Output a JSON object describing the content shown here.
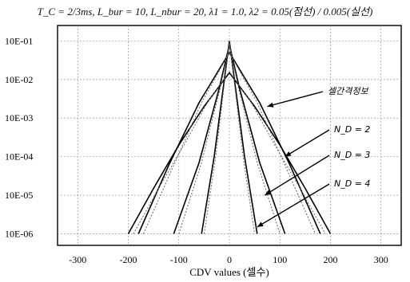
{
  "chart_data": {
    "type": "line",
    "title": "T_C = 2/3ms, L_bur = 10, L_nbur = 20, λ1 = 1.0, λ2 = 0.05(점선) / 0.005(실선)",
    "xlabel": "CDV values (셀수)",
    "ylabel": "",
    "x_ticks": [
      -300,
      -200,
      -100,
      0,
      100,
      200,
      300
    ],
    "y_ticks": [
      "10E-01",
      "10E-02",
      "10E-03",
      "10E-04",
      "10E-05",
      "10E-06"
    ],
    "xlim": [
      -340,
      340
    ],
    "ylim_log10": [
      -6.3,
      -0.6
    ],
    "grid": true,
    "series": [
      {
        "style": "solid",
        "color": "#000000",
        "x": [
          -200,
          -150,
          -100,
          -50,
          0,
          50,
          100,
          150,
          200
        ],
        "y": [
          1e-06,
          1.5e-05,
          0.0002,
          0.002,
          0.015,
          0.002,
          0.0002,
          1.5e-05,
          1e-06
        ]
      },
      {
        "style": "solid",
        "color": "#000000",
        "x": [
          -180,
          -120,
          -60,
          0,
          60,
          120,
          180
        ],
        "y": [
          1e-06,
          6e-05,
          0.0025,
          0.05,
          0.0025,
          6e-05,
          1e-06
        ]
      },
      {
        "style": "solid",
        "color": "#000000",
        "x": [
          -110,
          -60,
          -20,
          0,
          20,
          60,
          110
        ],
        "y": [
          1e-06,
          7e-05,
          0.006,
          0.08,
          0.006,
          7e-05,
          1e-06
        ]
      },
      {
        "style": "solid",
        "color": "#000000",
        "x": [
          -55,
          -30,
          -10,
          0,
          10,
          30,
          55
        ],
        "y": [
          1e-06,
          0.0001,
          0.01,
          0.1,
          0.01,
          0.0001,
          1e-06
        ]
      },
      {
        "style": "dotted",
        "color": "#666666",
        "x": [
          -190,
          -140,
          -90,
          -40,
          0,
          40,
          90,
          140,
          190
        ],
        "y": [
          1e-06,
          1.5e-05,
          0.0002,
          0.003,
          0.016,
          0.003,
          0.0002,
          1.5e-05,
          1e-06
        ]
      },
      {
        "style": "dotted",
        "color": "#666666",
        "x": [
          -170,
          -110,
          -55,
          0,
          55,
          110,
          170
        ],
        "y": [
          1e-06,
          6e-05,
          0.0025,
          0.05,
          0.0025,
          6e-05,
          1e-06
        ]
      },
      {
        "style": "dotted",
        "color": "#666666",
        "x": [
          -100,
          -55,
          -18,
          0,
          18,
          55,
          100
        ],
        "y": [
          1e-06,
          7e-05,
          0.006,
          0.08,
          0.006,
          7e-05,
          1e-06
        ]
      },
      {
        "style": "dotted",
        "color": "#666666",
        "x": [
          -50,
          -27,
          -9,
          0,
          9,
          27,
          50
        ],
        "y": [
          1e-06,
          0.0001,
          0.01,
          0.1,
          0.01,
          0.0001,
          1e-06
        ]
      }
    ],
    "annotations": [
      {
        "text": "셀간격정보",
        "arrow_to": [
          75,
          0.002
        ]
      },
      {
        "text": "N_D = 2",
        "arrow_to": [
          110,
          0.0001
        ]
      },
      {
        "text": "N_D = 3",
        "arrow_to": [
          70,
          1e-05
        ]
      },
      {
        "text": "N_D = 4",
        "arrow_to": [
          55,
          1.5e-06
        ]
      }
    ]
  }
}
